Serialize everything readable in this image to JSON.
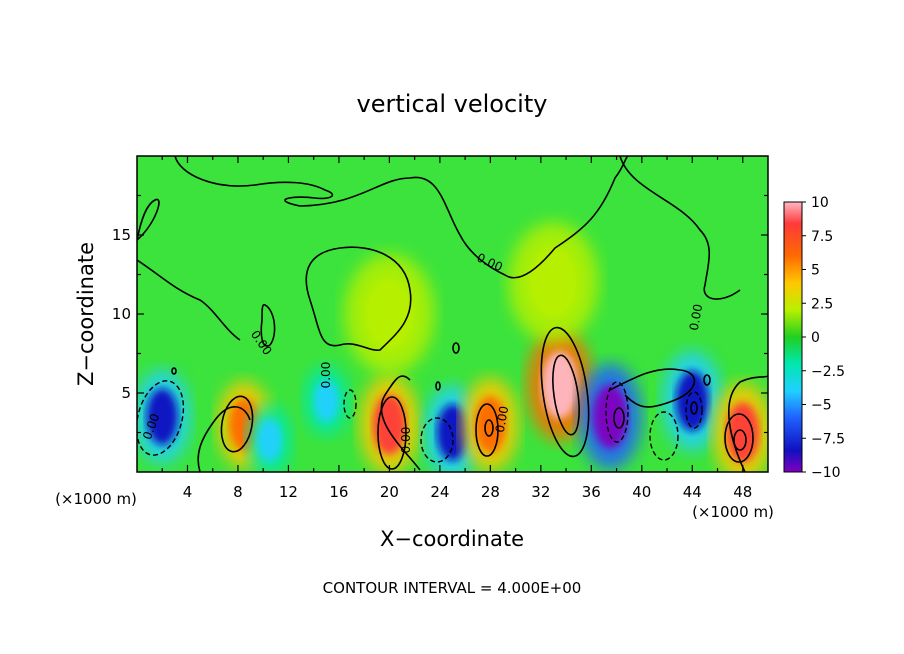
{
  "chart_data": {
    "type": "heatmap",
    "title": "vertical velocity",
    "xlabel": "X−coordinate",
    "ylabel": "Z−coordinate",
    "x_unit_left": "(×1000 m)",
    "x_unit_right": "(×1000 m)",
    "footer": "CONTOUR INTERVAL = 4.000E+00",
    "xlim": [
      0,
      50
    ],
    "ylim": [
      0,
      20
    ],
    "x_ticks": [
      "4",
      "8",
      "12",
      "16",
      "20",
      "24",
      "28",
      "32",
      "36",
      "40",
      "44",
      "48"
    ],
    "x_tick_values": [
      4,
      8,
      12,
      16,
      20,
      24,
      28,
      32,
      36,
      40,
      44,
      48
    ],
    "y_ticks": [
      "5",
      "10",
      "15"
    ],
    "y_tick_values": [
      5,
      10,
      15
    ],
    "colorbar": {
      "range": [
        -10,
        10
      ],
      "tick_labels": [
        "10",
        "7.5",
        "5",
        "2.5",
        "0",
        "−2.5",
        "−5",
        "−7.5",
        "−10"
      ],
      "tick_values": [
        10,
        7.5,
        5,
        2.5,
        0,
        -2.5,
        -5,
        -7.5,
        -10
      ]
    },
    "contour_labels": [
      "0.00",
      "0.00",
      "0.00",
      "0.00",
      "0.00",
      "0.00",
      "0.00"
    ],
    "cells": [
      {
        "x": 2.0,
        "z": 3.5,
        "w": -7
      },
      {
        "x": 8.5,
        "z": 3.0,
        "w": 6
      },
      {
        "x": 10.5,
        "z": 2.0,
        "w": -3
      },
      {
        "x": 15.0,
        "z": 4.5,
        "w": -3
      },
      {
        "x": 20.0,
        "z": 3.0,
        "w": 8
      },
      {
        "x": 25.0,
        "z": 2.5,
        "w": -7
      },
      {
        "x": 28.0,
        "z": 3.0,
        "w": 7
      },
      {
        "x": 33.5,
        "z": 5.5,
        "w": 10
      },
      {
        "x": 37.5,
        "z": 3.5,
        "w": -9
      },
      {
        "x": 44.0,
        "z": 4.5,
        "w": -8
      },
      {
        "x": 48.0,
        "z": 2.5,
        "w": 8
      },
      {
        "x": 20.0,
        "z": 10.0,
        "w": 2
      },
      {
        "x": 33.0,
        "z": 12.0,
        "w": 2
      }
    ]
  }
}
